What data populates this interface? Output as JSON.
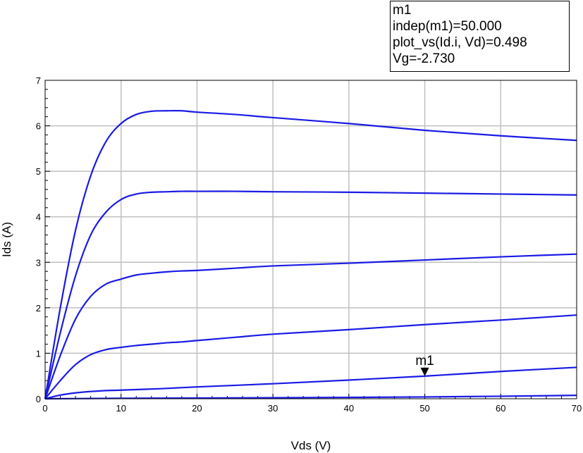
{
  "marker_box": {
    "lines": [
      "m1",
      "indep(m1)=50.000",
      "plot_vs(Id.i, Vd)=0.498",
      "Vg=-2.730"
    ]
  },
  "chart_data": {
    "type": "line",
    "xlabel": "Vds (V)",
    "ylabel": "Ids (A)",
    "xlim": [
      0,
      70
    ],
    "ylim": [
      0,
      7
    ],
    "xticks": [
      0,
      10,
      20,
      30,
      40,
      50,
      60,
      70
    ],
    "yticks": [
      0,
      1,
      2,
      3,
      4,
      5,
      6,
      7
    ],
    "grid": true,
    "colors": {
      "series": "#1a1ae6",
      "grid": "#c0c0c0",
      "axis": "#000000"
    },
    "series": [
      {
        "x": [
          0,
          2,
          4,
          6,
          8,
          10,
          12,
          14,
          16,
          18,
          20,
          25,
          30,
          40,
          50,
          60,
          70
        ],
        "y": [
          0,
          2.0,
          3.7,
          4.9,
          5.65,
          6.05,
          6.25,
          6.32,
          6.33,
          6.33,
          6.3,
          6.25,
          6.18,
          6.05,
          5.9,
          5.78,
          5.68
        ]
      },
      {
        "x": [
          0,
          2,
          4,
          6,
          8,
          10,
          12,
          14,
          16,
          18,
          20,
          25,
          30,
          40,
          50,
          60,
          70
        ],
        "y": [
          0,
          1.45,
          2.7,
          3.6,
          4.1,
          4.38,
          4.5,
          4.54,
          4.55,
          4.56,
          4.56,
          4.56,
          4.55,
          4.54,
          4.52,
          4.5,
          4.48
        ]
      },
      {
        "x": [
          0,
          2,
          4,
          6,
          8,
          10,
          12,
          14,
          16,
          18,
          20,
          25,
          30,
          40,
          50,
          60,
          70
        ],
        "y": [
          0,
          0.95,
          1.75,
          2.25,
          2.52,
          2.63,
          2.72,
          2.76,
          2.79,
          2.81,
          2.82,
          2.87,
          2.92,
          2.98,
          3.05,
          3.12,
          3.18
        ]
      },
      {
        "x": [
          0,
          2,
          4,
          6,
          8,
          10,
          12,
          14,
          16,
          18,
          20,
          25,
          30,
          40,
          50,
          60,
          70
        ],
        "y": [
          0,
          0.4,
          0.75,
          0.97,
          1.08,
          1.13,
          1.17,
          1.2,
          1.23,
          1.25,
          1.28,
          1.35,
          1.42,
          1.52,
          1.63,
          1.73,
          1.84
        ]
      },
      {
        "x": [
          0,
          2,
          4,
          6,
          8,
          10,
          15,
          20,
          30,
          40,
          50,
          60,
          70
        ],
        "y": [
          0,
          0.08,
          0.13,
          0.16,
          0.18,
          0.19,
          0.22,
          0.26,
          0.33,
          0.41,
          0.498,
          0.6,
          0.69
        ]
      },
      {
        "x": [
          0,
          5,
          10,
          20,
          30,
          40,
          50,
          60,
          70
        ],
        "y": [
          0,
          0.005,
          0.01,
          0.015,
          0.022,
          0.03,
          0.04,
          0.055,
          0.075
        ]
      }
    ],
    "marker": {
      "name": "m1",
      "x": 50,
      "y": 0.498
    }
  }
}
